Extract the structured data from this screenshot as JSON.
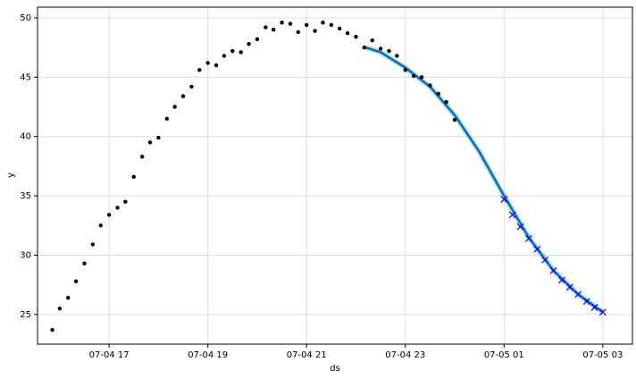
{
  "chart_data": {
    "type": "line",
    "x_label": "ds",
    "y_label": "y",
    "grid": true,
    "xlim": [
      15.55,
      27.6
    ],
    "ylim": [
      22.5,
      50.9
    ],
    "xticks": [
      {
        "value": 17,
        "label": "07-04 17"
      },
      {
        "value": 19,
        "label": "07-04 19"
      },
      {
        "value": 21,
        "label": "07-04 21"
      },
      {
        "value": 23,
        "label": "07-04 23"
      },
      {
        "value": 25,
        "label": "07-05 01"
      },
      {
        "value": 27,
        "label": "07-05 03"
      }
    ],
    "yticks": [
      25,
      30,
      35,
      40,
      45,
      50
    ],
    "series": [
      {
        "style": "dots",
        "color": "#000000",
        "x": [
          15.85,
          16.0,
          16.17,
          16.33,
          16.5,
          16.67,
          16.83,
          17.0,
          17.17,
          17.33,
          17.5,
          17.67,
          17.83,
          18.0,
          18.17,
          18.33,
          18.5,
          18.67,
          18.83,
          19.0,
          19.17,
          19.33,
          19.5,
          19.67,
          19.83,
          20.0,
          20.17,
          20.33,
          20.5,
          20.67,
          20.83,
          21.0,
          21.17,
          21.33,
          21.5,
          21.67,
          21.83,
          22.0,
          22.17,
          22.33,
          22.5,
          22.67,
          22.83,
          23.0,
          23.17,
          23.33,
          23.5,
          23.67,
          23.83,
          24.0
        ],
        "values": [
          23.7,
          25.5,
          26.4,
          27.8,
          29.3,
          30.9,
          32.5,
          33.4,
          34.0,
          34.5,
          36.6,
          38.3,
          39.5,
          39.9,
          41.5,
          42.5,
          43.4,
          44.2,
          45.6,
          46.2,
          46.0,
          46.8,
          47.2,
          47.1,
          47.8,
          48.2,
          49.2,
          49.0,
          49.6,
          49.5,
          48.8,
          49.4,
          48.9,
          49.6,
          49.4,
          49.1,
          48.7,
          48.4,
          47.5,
          48.1,
          47.4,
          47.2,
          46.8,
          45.6,
          45.1,
          45.0,
          44.3,
          43.6,
          42.9,
          41.4
        ]
      },
      {
        "style": "line",
        "color": "#0072b2",
        "x": [
          22.2,
          22.5,
          23.0,
          23.5,
          24.0,
          24.5,
          25.0,
          25.5,
          26.0,
          26.5,
          27.0
        ],
        "values": [
          47.5,
          47.1,
          45.8,
          44.2,
          41.8,
          38.7,
          35.0,
          31.5,
          28.7,
          26.7,
          25.2
        ]
      },
      {
        "style": "cross",
        "color": "#0000ff",
        "x": [
          25.0,
          25.17,
          25.33,
          25.5,
          25.67,
          25.83,
          26.0,
          26.17,
          26.33,
          26.5,
          26.67,
          26.83,
          27.0
        ],
        "values": [
          34.7,
          33.4,
          32.4,
          31.4,
          30.5,
          29.6,
          28.7,
          27.9,
          27.3,
          26.7,
          26.1,
          25.6,
          25.2
        ]
      }
    ]
  }
}
